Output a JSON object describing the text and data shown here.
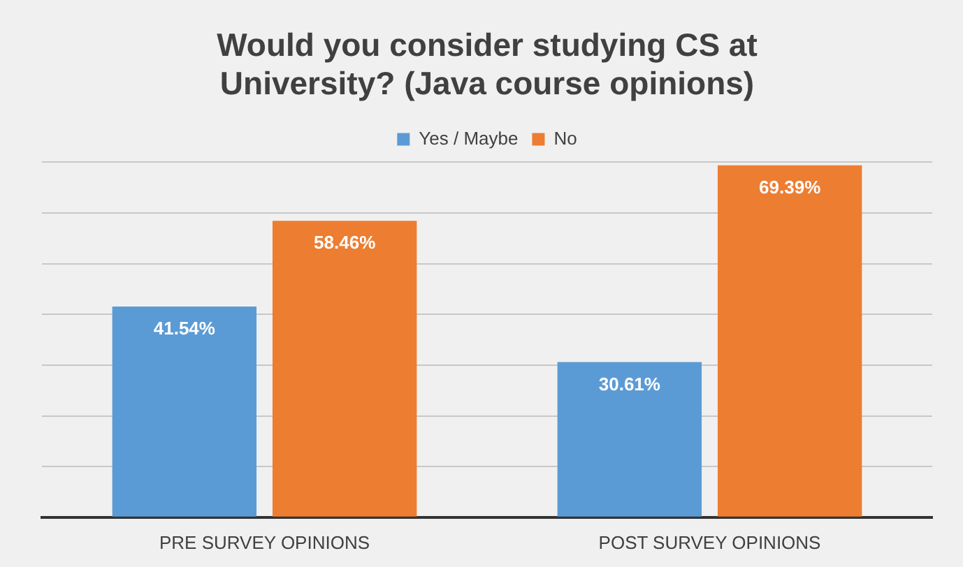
{
  "chart_data": {
    "type": "bar",
    "title": "Would you consider studying CS at University? (Java course opinions)",
    "categories": [
      "PRE SURVEY OPINIONS",
      "POST SURVEY OPINIONS"
    ],
    "series": [
      {
        "name": "Yes / Maybe",
        "color": "#5b9bd5",
        "values": [
          41.54,
          30.61
        ],
        "value_labels": [
          "41.54%",
          "30.61%"
        ]
      },
      {
        "name": "No",
        "color": "#ed7d31",
        "values": [
          58.46,
          69.39
        ],
        "value_labels": [
          "58.46%",
          "69.39%"
        ]
      }
    ],
    "tick_labels": "x",
    "grid": "y",
    "legend": "top"
  }
}
